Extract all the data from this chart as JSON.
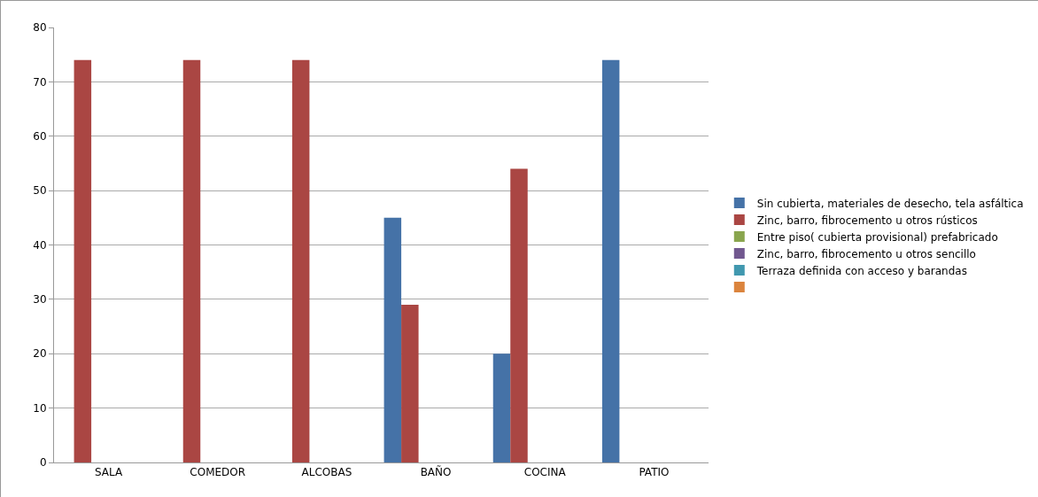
{
  "chart_data": {
    "type": "bar",
    "categories": [
      "SALA",
      "COMEDOR",
      "ALCOBAS",
      "BAÑO",
      "COCINA",
      "PATIO"
    ],
    "series": [
      {
        "name": "Sin cubierta, materiales de desecho, tela asfáltica",
        "color": "#4572a7",
        "values": [
          0,
          0,
          0,
          45,
          20,
          74
        ]
      },
      {
        "name": "Zinc, barro, fibrocemento u otros rústicos",
        "color": "#aa4643",
        "values": [
          74,
          74,
          74,
          29,
          54,
          0
        ]
      },
      {
        "name": "Entre piso( cubierta provisional) prefabricado",
        "color": "#89a54e",
        "values": [
          0,
          0,
          0,
          0,
          0,
          0
        ]
      },
      {
        "name": "Zinc, barro, fibrocemento u otros sencillo",
        "color": "#71588f",
        "values": [
          0,
          0,
          0,
          0,
          0,
          0
        ]
      },
      {
        "name": "Terraza definida con acceso y barandas",
        "color": "#4198af",
        "values": [
          0,
          0,
          0,
          0,
          0,
          0
        ]
      },
      {
        "color": "#db843d",
        "values": [
          0,
          0,
          0,
          0,
          0,
          0
        ]
      }
    ],
    "ylim": [
      0,
      80
    ],
    "yticks": [
      0,
      10,
      20,
      30,
      40,
      50,
      60,
      70,
      80
    ],
    "grid": "y",
    "legend": "right"
  }
}
